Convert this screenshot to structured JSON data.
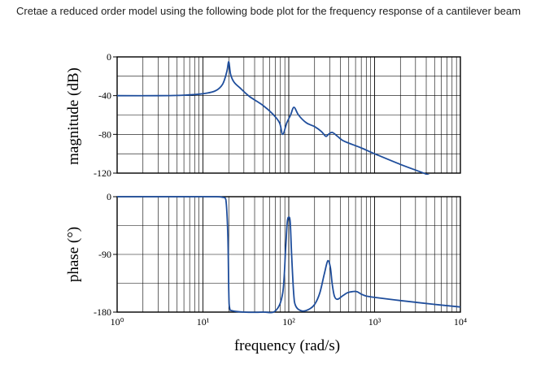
{
  "question": {
    "text": "Cretae a reduced order model using the following bode plot for the frequency response of a cantilever beam"
  },
  "chart_data": [
    {
      "type": "line",
      "name": "magnitude",
      "ylabel": "magnitude (dB)",
      "xscale": "log",
      "xlim": [
        1,
        10000
      ],
      "ylim": [
        -120,
        0
      ],
      "yticks": [
        0,
        -40,
        -80,
        -120
      ],
      "ytick_labels": [
        "0",
        "-40",
        "-80",
        "-120"
      ],
      "grid": true,
      "line_color": "#1f4e9c",
      "series": [
        {
          "x": [
            1,
            3,
            6,
            10,
            14,
            17,
            19,
            20,
            21,
            23,
            27,
            35,
            50,
            65,
            78,
            85,
            95,
            105,
            115,
            130,
            160,
            200,
            240,
            270,
            290,
            320,
            370,
            420,
            500,
            700,
            1000,
            2000,
            4000,
            5500
          ],
          "y": [
            -40,
            -40,
            -39.5,
            -38,
            -35,
            -28,
            -15,
            -5,
            -18,
            -26,
            -32,
            -41,
            -50,
            -59,
            -68,
            -80,
            -68,
            -60,
            -52,
            -60,
            -68,
            -72,
            -77,
            -82,
            -80,
            -78,
            -82,
            -86,
            -89,
            -94,
            -100,
            -111,
            -121,
            -126
          ]
        }
      ]
    },
    {
      "type": "line",
      "name": "phase",
      "ylabel": "phase (°)",
      "xlabel": "frequency (rad/s)",
      "xscale": "log",
      "xlim": [
        1,
        10000
      ],
      "ylim": [
        -180,
        0
      ],
      "yticks": [
        0,
        -90,
        -180
      ],
      "ytick_labels": [
        "0",
        "-90",
        "-180"
      ],
      "xtick_labels": [
        "10⁰",
        "10¹",
        "10²",
        "10³",
        "10⁴"
      ],
      "grid": true,
      "line_color": "#1f4e9c",
      "series": [
        {
          "x": [
            1,
            5,
            10,
            14,
            17,
            18.5,
            19.5,
            20,
            20.5,
            22,
            30,
            50,
            70,
            85,
            92,
            96,
            100,
            104,
            108,
            114,
            120,
            140,
            170,
            200,
            230,
            260,
            285,
            305,
            320,
            340,
            370,
            420,
            480,
            550,
            620,
            700,
            800,
            1000,
            2000,
            5000,
            10000
          ],
          "y": [
            0,
            0,
            0,
            0,
            -1,
            -5,
            -60,
            -150,
            -174,
            -178,
            -180,
            -180,
            -178,
            -150,
            -80,
            -40,
            -32,
            -40,
            -90,
            -150,
            -170,
            -178,
            -176,
            -168,
            -150,
            -120,
            -100,
            -110,
            -135,
            -155,
            -160,
            -155,
            -150,
            -148,
            -148,
            -152,
            -155,
            -157,
            -162,
            -168,
            -172
          ]
        }
      ]
    }
  ]
}
